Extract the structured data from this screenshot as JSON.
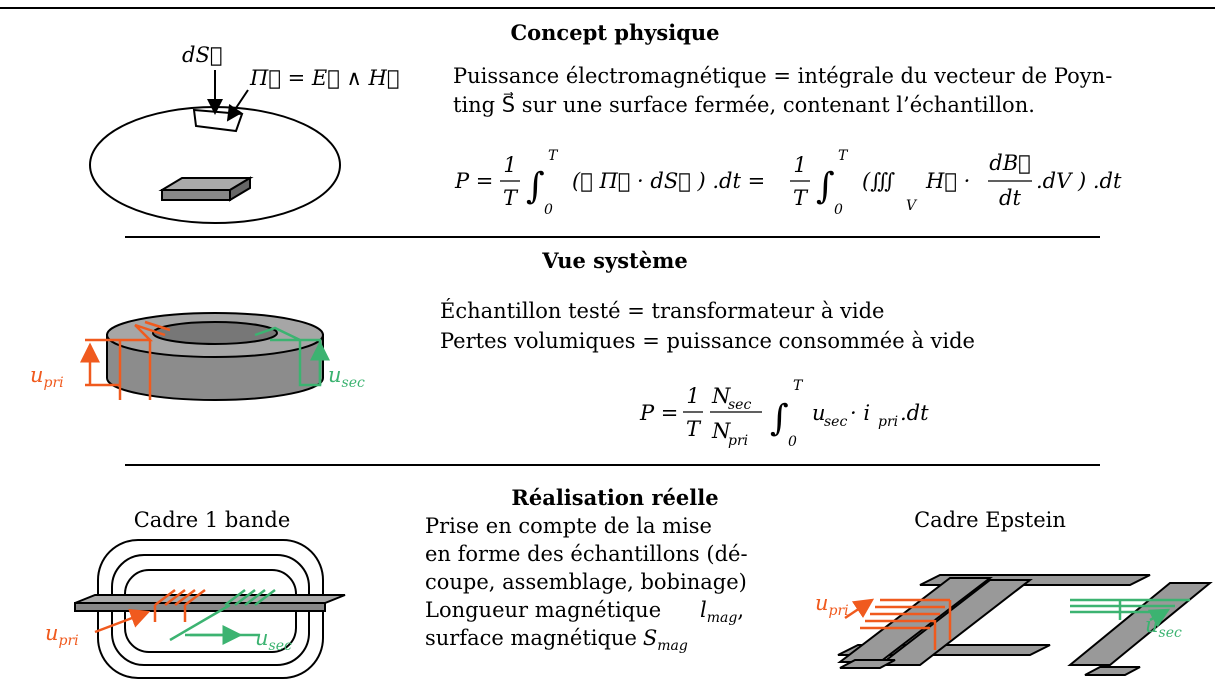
{
  "concept": {
    "title": "Concept physique",
    "lines": [
      "Puissance électromagnétique = intégrale du vecteur de Poyn-",
      "ting S⃗ sur une surface fermée, contenant l’échantillon."
    ],
    "formula": [
      "P =",
      "1",
      "T",
      "∫",
      "T",
      "0",
      "(∯ Π⃗ · dS⃗ ) .dt =",
      "1",
      "T",
      "∫",
      "T",
      "0",
      "(∭",
      "V",
      "H⃗ ·",
      "dB⃗",
      "dt",
      ".dV ) .dt"
    ],
    "labels": {
      "surface": "dS⃗",
      "poynting": "Π⃗ = E⃗ ∧ H⃗"
    }
  },
  "system": {
    "title": "Vue système",
    "lines": [
      "Échantillon testé = transformateur à vide",
      "Pertes volumiques = puissance consommée à vide"
    ],
    "formula": [
      "P =",
      "1",
      "T",
      "N",
      "sec",
      "N",
      "pri",
      "∫",
      "T",
      "0",
      "u",
      "sec",
      "· i",
      "pri",
      ".dt"
    ],
    "u_pri": {
      "base": "u",
      "sub": "pri"
    },
    "u_sec": {
      "base": "u",
      "sub": "sec"
    }
  },
  "real": {
    "title": "Réalisation réelle",
    "lines": [
      "Prise en compte de la mise",
      "en forme des échantillons (dé-",
      "coupe, assemblage, bobinage)"
    ],
    "length": {
      "text": "Longueur magnétique",
      "var": "l",
      "sub": "mag",
      "end": ","
    },
    "surface": {
      "text": "surface magnétique",
      "var": "S",
      "sub": "mag"
    },
    "left_caption": "Cadre 1 bande",
    "right_caption": "Cadre Epstein",
    "left_u_pri": {
      "base": "u",
      "sub": "pri"
    },
    "left_u_sec": {
      "base": "u",
      "sub": "sec"
    },
    "right_u_pri": {
      "base": "u",
      "sub": "pri"
    },
    "right_u_sec": {
      "base": "u",
      "sub": "sec"
    }
  }
}
